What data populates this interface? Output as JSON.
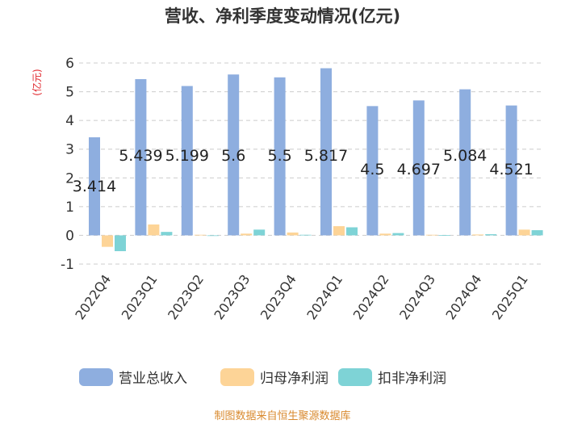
{
  "chart_data": {
    "type": "bar",
    "title": "营收、净利季度变动情况(亿元)",
    "ylabel": "(亿元)",
    "ylim": [
      -1,
      6
    ],
    "yticks": [
      -1,
      0,
      1,
      2,
      3,
      4,
      5,
      6
    ],
    "grid": true,
    "legend_position": "bottom",
    "categories": [
      "2022Q4",
      "2023Q1",
      "2023Q2",
      "2023Q3",
      "2023Q4",
      "2024Q1",
      "2024Q2",
      "2024Q3",
      "2024Q4",
      "2025Q1"
    ],
    "series": [
      {
        "name": "营业总收入",
        "color": "#8eaedf",
        "values": [
          3.414,
          5.439,
          5.199,
          5.6,
          5.5,
          5.817,
          4.5,
          4.697,
          5.084,
          4.521
        ],
        "labels": [
          "3.414",
          "5.439",
          "5.199",
          "5.6",
          "5.5",
          "5.817",
          "4.5",
          "4.697",
          "5.084",
          "4.521"
        ]
      },
      {
        "name": "归母净利润",
        "color": "#fdd497",
        "values": [
          -0.4,
          0.38,
          0.02,
          0.06,
          0.1,
          0.32,
          0.06,
          0.02,
          0.03,
          0.2
        ]
      },
      {
        "name": "扣非净利润",
        "color": "#7ed3d6",
        "values": [
          -0.55,
          0.12,
          0.0,
          0.2,
          0.02,
          0.28,
          0.08,
          0.01,
          0.04,
          0.18
        ]
      }
    ]
  },
  "footer": "制图数据来自恒生聚源数据库"
}
